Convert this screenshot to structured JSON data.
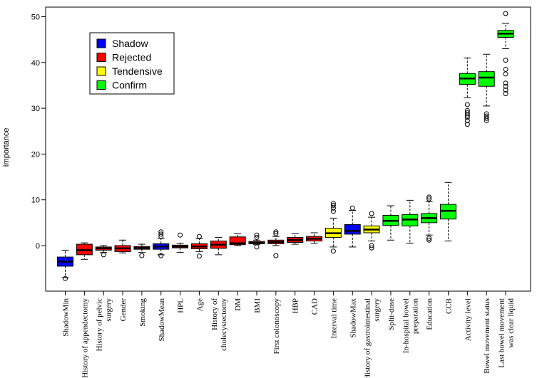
{
  "chart_data": {
    "type": "boxplot",
    "ylabel": "Importance",
    "ylim": [
      -10,
      53
    ],
    "yticks": [
      0,
      10,
      20,
      30,
      40,
      50
    ],
    "grid": false,
    "legend": {
      "placement": "top-left",
      "entries": [
        {
          "label": "Shadow",
          "color": "#0000ff"
        },
        {
          "label": "Rejected",
          "color": "#ff0000"
        },
        {
          "label": "Tendensive",
          "color": "#ffff00"
        },
        {
          "label": "Confirm",
          "color": "#00ff00"
        }
      ]
    },
    "boxes": [
      {
        "label": "ShadowMin",
        "group": "Shadow",
        "min": -7.0,
        "q1": -4.5,
        "median": -3.5,
        "q3": -2.5,
        "max": -1.0,
        "outliers": [
          -7.2
        ]
      },
      {
        "label": "History of appendectomy",
        "group": "Rejected",
        "min": -3.0,
        "q1": -2.0,
        "median": -1.0,
        "q3": 0.3,
        "max": 0.6,
        "outliers": []
      },
      {
        "label": "History of pelvic\nsurgery",
        "group": "Rejected",
        "min": -1.5,
        "q1": -1.0,
        "median": -0.6,
        "q3": -0.3,
        "max": 0.0,
        "outliers": [
          -2.0
        ]
      },
      {
        "label": "Gender",
        "group": "Rejected",
        "min": -1.6,
        "q1": -1.3,
        "median": -0.6,
        "q3": 0.0,
        "max": 1.2,
        "outliers": []
      },
      {
        "label": "Smoking",
        "group": "Rejected",
        "min": -1.5,
        "q1": -0.8,
        "median": -0.5,
        "q3": -0.2,
        "max": 0.3,
        "outliers": [
          -2.2
        ]
      },
      {
        "label": "ShadowMean",
        "group": "Shadow",
        "min": -2.0,
        "q1": -0.8,
        "median": -0.2,
        "q3": 0.4,
        "max": 1.6,
        "outliers": [
          -2.2,
          2.0,
          2.5,
          3.0
        ]
      },
      {
        "label": "HPL",
        "group": "Rejected",
        "min": -1.5,
        "q1": -0.5,
        "median": -0.2,
        "q3": 0.1,
        "max": 0.5,
        "outliers": [
          2.3
        ]
      },
      {
        "label": "Age",
        "group": "Rejected",
        "min": -1.3,
        "q1": -0.7,
        "median": -0.2,
        "q3": 0.4,
        "max": 1.5,
        "outliers": [
          -2.3,
          2.0
        ]
      },
      {
        "label": "History of\ncholecystectomy",
        "group": "Rejected",
        "min": -2.0,
        "q1": -0.6,
        "median": 0.2,
        "q3": 1.0,
        "max": 1.8,
        "outliers": []
      },
      {
        "label": "DM",
        "group": "Rejected",
        "min": 0.0,
        "q1": 0.2,
        "median": 0.5,
        "q3": 1.9,
        "max": 2.6,
        "outliers": []
      },
      {
        "label": "BMI",
        "group": "Rejected",
        "min": 0.2,
        "q1": 0.4,
        "median": 0.6,
        "q3": 0.9,
        "max": 1.2,
        "outliers": [
          -0.3,
          1.8,
          2.3
        ]
      },
      {
        "label": "First colonoscopy",
        "group": "Rejected",
        "min": 0.0,
        "q1": 0.4,
        "median": 0.8,
        "q3": 1.2,
        "max": 2.0,
        "outliers": [
          -2.2,
          2.6,
          3.0
        ]
      },
      {
        "label": "HBP",
        "group": "Rejected",
        "min": 0.3,
        "q1": 0.7,
        "median": 1.2,
        "q3": 1.8,
        "max": 2.6,
        "outliers": []
      },
      {
        "label": "CAD",
        "group": "Rejected",
        "min": 0.5,
        "q1": 1.0,
        "median": 1.5,
        "q3": 2.0,
        "max": 2.8,
        "outliers": []
      },
      {
        "label": "Interval time",
        "group": "Tendensive",
        "min": -0.3,
        "q1": 1.8,
        "median": 2.7,
        "q3": 3.8,
        "max": 6.0,
        "outliers": [
          -1.2,
          7.5,
          8.2,
          8.8,
          9.2
        ]
      },
      {
        "label": "ShadowMax",
        "group": "Shadow",
        "min": -0.3,
        "q1": 2.5,
        "median": 3.2,
        "q3": 4.6,
        "max": 7.7,
        "outliers": [
          8.2
        ]
      },
      {
        "label": "History of gastrointestinal\nsurgery",
        "group": "Tendensive",
        "min": 1.0,
        "q1": 2.8,
        "median": 3.5,
        "q3": 4.3,
        "max": 6.2,
        "outliers": [
          -0.5,
          0.0,
          7.0
        ]
      },
      {
        "label": "Split-dose",
        "group": "Confirm",
        "min": 1.2,
        "q1": 4.4,
        "median": 5.4,
        "q3": 6.6,
        "max": 8.7,
        "outliers": []
      },
      {
        "label": "In-hospital bowel\npreparation",
        "group": "Confirm",
        "min": 0.5,
        "q1": 4.3,
        "median": 5.7,
        "q3": 6.8,
        "max": 9.9,
        "outliers": []
      },
      {
        "label": "Education",
        "group": "Confirm",
        "min": 2.3,
        "q1": 5.0,
        "median": 6.0,
        "q3": 7.0,
        "max": 9.6,
        "outliers": [
          1.2,
          1.6,
          10.2,
          10.6
        ]
      },
      {
        "label": "CCB",
        "group": "Confirm",
        "min": 1.0,
        "q1": 5.8,
        "median": 7.6,
        "q3": 9.0,
        "max": 13.8,
        "outliers": []
      },
      {
        "label": "Activity level",
        "group": "Confirm",
        "min": 32.3,
        "q1": 35.2,
        "median": 36.5,
        "q3": 37.6,
        "max": 41.0,
        "outliers": [
          26.5,
          27.3,
          28.0,
          28.5,
          29.0,
          29.5,
          30.8
        ]
      },
      {
        "label": "Bowel movement status",
        "group": "Confirm",
        "min": 30.5,
        "q1": 34.8,
        "median": 36.7,
        "q3": 38.0,
        "max": 41.8,
        "outliers": [
          27.3,
          27.8,
          28.3,
          28.8
        ]
      },
      {
        "label": "Last bowel movement\nwas clear liquid",
        "group": "Confirm",
        "min": 43.0,
        "q1": 45.5,
        "median": 46.3,
        "q3": 47.0,
        "max": 48.6,
        "outliers": [
          33.2,
          34.0,
          34.8,
          35.5,
          37.5,
          38.5,
          40.5,
          50.7
        ]
      }
    ]
  }
}
